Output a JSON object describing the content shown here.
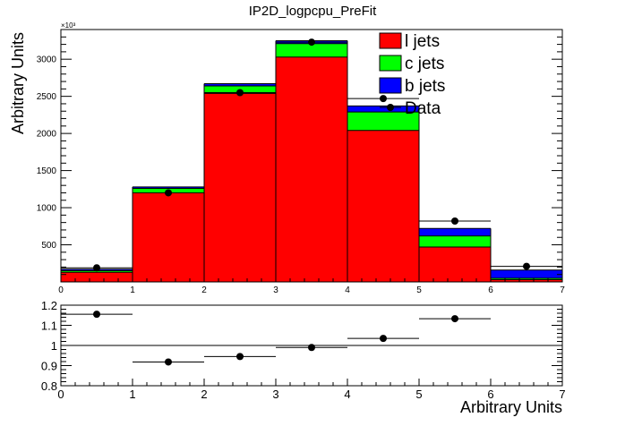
{
  "chart_data": [
    {
      "type": "bar",
      "stacked": true,
      "title": "IP2D_logpcpu_PreFit",
      "ylabel": "Arbitrary Units",
      "xlabel": "",
      "y_multiplier": "×10³",
      "x_bin_edges": [
        0,
        1,
        2,
        3,
        4,
        5,
        6,
        7
      ],
      "x_tick_labels": [
        "0",
        "1",
        "2",
        "3",
        "4",
        "5",
        "6",
        "7"
      ],
      "xlim": [
        0,
        7
      ],
      "ylim": [
        0,
        3400
      ],
      "y_tick_labels": [
        "500",
        "1000",
        "1500",
        "2000",
        "2500",
        "3000"
      ],
      "y_tick_values": [
        500,
        1000,
        1500,
        2000,
        2500,
        3000
      ],
      "series": [
        {
          "name": "l jets",
          "color": "#ff0000",
          "values": [
            130,
            1200,
            2540,
            3030,
            2040,
            470,
            30
          ]
        },
        {
          "name": "c jets",
          "color": "#00ff00",
          "values": [
            20,
            60,
            100,
            180,
            250,
            150,
            20
          ]
        },
        {
          "name": "b jets",
          "color": "#0000ff",
          "values": [
            20,
            20,
            30,
            40,
            80,
            100,
            110
          ]
        }
      ],
      "data": {
        "name": "Data",
        "x": [
          0.5,
          1.5,
          2.5,
          3.5,
          4.5,
          5.5,
          6.5
        ],
        "y": [
          190,
          1200,
          2550,
          3230,
          2470,
          820,
          210
        ]
      },
      "legend_position": "top-right"
    },
    {
      "type": "scatter",
      "xlabel": "Arbitrary Units",
      "xlim": [
        0,
        7
      ],
      "ylim": [
        0.8,
        1.2
      ],
      "x_tick_labels": [
        "0",
        "1",
        "2",
        "3",
        "4",
        "5",
        "6",
        "7"
      ],
      "y_tick_labels": [
        "0.8",
        "0.9",
        "1",
        "1.1",
        "1.2"
      ],
      "y_tick_values": [
        0.8,
        0.9,
        1.0,
        1.1,
        1.2
      ],
      "reference_line": 1.0,
      "x": [
        0.5,
        1.5,
        2.5,
        3.5,
        4.5,
        5.5
      ],
      "y": [
        1.155,
        0.918,
        0.945,
        0.99,
        1.035,
        1.133
      ]
    }
  ]
}
